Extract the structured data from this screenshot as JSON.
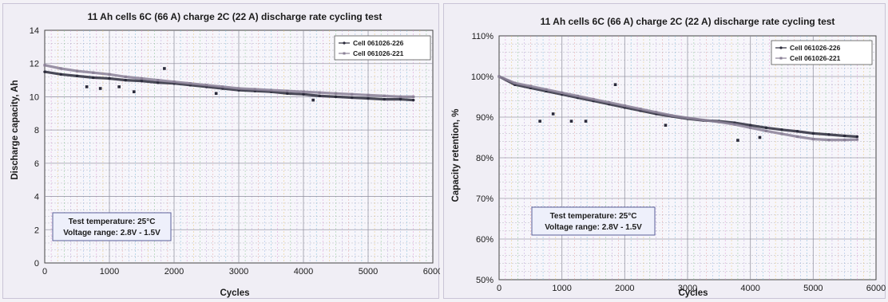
{
  "colors": {
    "plot_bg": "#f7f6fb",
    "panel_bg": "#f0eef5",
    "grid": "#8c8c9c",
    "series_a": "#2a2a3a",
    "series_b": "#8a8096",
    "annot_bg": "#eef0fb",
    "annot_border": "#5b5f9a"
  },
  "chart_data": [
    {
      "type": "line",
      "title": "11 Ah cells  6C (66 A) charge 2C (22 A) discharge rate cycling test",
      "xlabel": "Cycles",
      "ylabel": "Discharge capacity,  Ah",
      "xlim": [
        0,
        6000
      ],
      "ylim": [
        0,
        14
      ],
      "x_ticks": [
        "0",
        "1000",
        "2000",
        "3000",
        "4000",
        "5000",
        "6000"
      ],
      "y_ticks": [
        "0",
        "2",
        "4",
        "6",
        "8",
        "10",
        "12",
        "14"
      ],
      "grid": true,
      "legend_position": "top-right",
      "annotation": [
        "Test temperature: 25°C",
        "Voltage range: 2.8V - 1.5V"
      ],
      "series": [
        {
          "name": "Cell 061026-226",
          "x": [
            0,
            250,
            500,
            750,
            1000,
            1250,
            1500,
            1750,
            2000,
            2250,
            2500,
            2750,
            3000,
            3250,
            3500,
            3750,
            4000,
            4250,
            4500,
            4750,
            5000,
            5250,
            5500,
            5700
          ],
          "y": [
            11.5,
            11.35,
            11.25,
            11.15,
            11.1,
            11.0,
            10.95,
            10.85,
            10.8,
            10.7,
            10.6,
            10.5,
            10.4,
            10.35,
            10.3,
            10.2,
            10.15,
            10.05,
            10.0,
            9.95,
            9.9,
            9.85,
            9.85,
            9.8
          ]
        },
        {
          "name": "Cell 061026-221",
          "x": [
            0,
            250,
            500,
            750,
            1000,
            1250,
            1500,
            1750,
            2000,
            2250,
            2500,
            2750,
            3000,
            3250,
            3500,
            3750,
            4000,
            4250,
            4500,
            4750,
            5000,
            5250,
            5500,
            5700
          ],
          "y": [
            11.9,
            11.7,
            11.55,
            11.45,
            11.35,
            11.2,
            11.1,
            11.0,
            10.9,
            10.8,
            10.7,
            10.6,
            10.5,
            10.45,
            10.4,
            10.35,
            10.3,
            10.25,
            10.2,
            10.15,
            10.1,
            10.05,
            10.0,
            10.0
          ]
        }
      ],
      "outliers": [
        {
          "x": 650,
          "y": 10.6
        },
        {
          "x": 860,
          "y": 10.5
        },
        {
          "x": 1150,
          "y": 10.6
        },
        {
          "x": 1380,
          "y": 10.3
        },
        {
          "x": 1850,
          "y": 11.7
        },
        {
          "x": 2650,
          "y": 10.2
        },
        {
          "x": 4150,
          "y": 9.8
        }
      ]
    },
    {
      "type": "line",
      "title": "11 Ah cells  6C (66 A) charge 2C (22 A) discharge rate cycling test",
      "xlabel": "Cycles",
      "ylabel": "Capacity retention,  %",
      "xlim": [
        0,
        6000
      ],
      "ylim": [
        50,
        110
      ],
      "x_ticks": [
        "0",
        "1000",
        "2000",
        "3000",
        "4000",
        "5000",
        "6000"
      ],
      "y_ticks": [
        "50%",
        "60%",
        "70%",
        "80%",
        "90%",
        "100%",
        "110%"
      ],
      "grid": true,
      "legend_position": "top-right",
      "annotation": [
        "Test temperature: 25°C",
        "Voltage range: 2.8V - 1.5V"
      ],
      "series": [
        {
          "name": "Cell 061026-226",
          "x": [
            0,
            250,
            500,
            750,
            1000,
            1250,
            1500,
            1750,
            2000,
            2250,
            2500,
            2750,
            3000,
            3250,
            3500,
            3750,
            4000,
            4250,
            4500,
            4750,
            5000,
            5250,
            5500,
            5700
          ],
          "y": [
            100,
            98,
            97.2,
            96.4,
            95.6,
            94.8,
            94,
            93.2,
            92.4,
            91.6,
            90.8,
            90.2,
            89.6,
            89.2,
            89,
            88.6,
            88,
            87.4,
            86.9,
            86.5,
            86,
            85.7,
            85.4,
            85.2
          ]
        },
        {
          "name": "Cell 061026-221",
          "x": [
            0,
            250,
            500,
            750,
            1000,
            1250,
            1500,
            1750,
            2000,
            2250,
            2500,
            2750,
            3000,
            3250,
            3500,
            3750,
            4000,
            4250,
            4500,
            4750,
            5000,
            5250,
            5500,
            5700
          ],
          "y": [
            100,
            98.4,
            97.6,
            96.8,
            96,
            95.2,
            94.4,
            93.6,
            92.8,
            92,
            91.2,
            90.4,
            89.8,
            89.3,
            88.8,
            88.2,
            87.4,
            86.6,
            85.9,
            85.2,
            84.6,
            84.4,
            84.4,
            84.5
          ]
        }
      ],
      "outliers": [
        {
          "x": 650,
          "y": 89
        },
        {
          "x": 860,
          "y": 90.8
        },
        {
          "x": 1150,
          "y": 89
        },
        {
          "x": 1380,
          "y": 89
        },
        {
          "x": 1850,
          "y": 98
        },
        {
          "x": 2650,
          "y": 88
        },
        {
          "x": 3800,
          "y": 84.3
        },
        {
          "x": 4150,
          "y": 85
        }
      ]
    }
  ]
}
